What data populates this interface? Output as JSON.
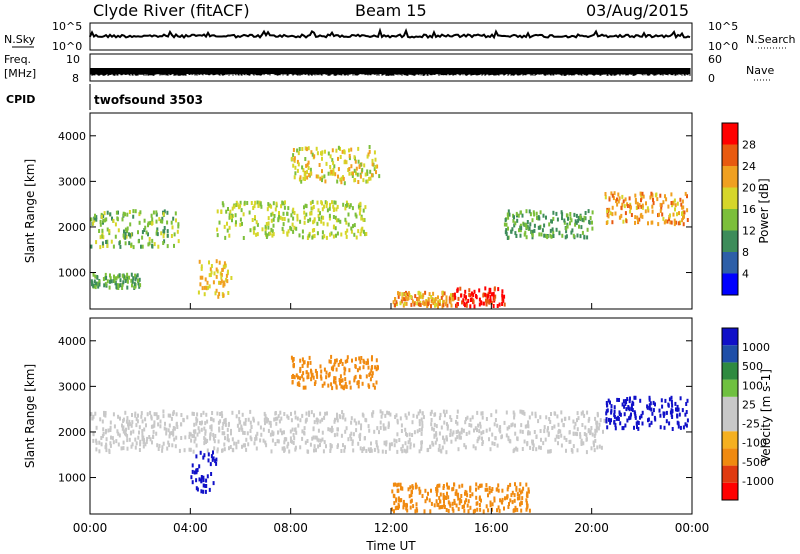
{
  "header": {
    "title": "Clyde River (fitACF)",
    "beam": "Beam 15",
    "date": "03/Aug/2015"
  },
  "top_panels": {
    "nsky_label": "N.Sky",
    "nsky_ticks": [
      "10^5",
      "10^0"
    ],
    "nsearch_label": "N.Search",
    "freq_label_line1": "Freq.",
    "freq_label_line2": "[MHz]",
    "freq_ticks": [
      "10",
      "8"
    ],
    "nave_label": "Nave",
    "nave_ticks": [
      "60",
      "0"
    ],
    "cpid_label": "CPID",
    "cpid_value": "twofsound 3503"
  },
  "colors": {
    "power_scale": [
      "#0000ff",
      "#2d5fa8",
      "#3d8c5a",
      "#7cbf3a",
      "#d6d62a",
      "#f0a020",
      "#e85a10",
      "#ff0000"
    ],
    "velocity_scale": [
      "#ff0000",
      "#e03a10",
      "#f08a10",
      "#f5b020",
      "#c8c8c8",
      "#c8c8c8",
      "#6fc040",
      "#2f8a40",
      "#1f4fa8",
      "#1010c8"
    ],
    "ground_scatter": "#c8c8c8"
  },
  "chart_data": [
    {
      "type": "heatmap",
      "title": "",
      "ylabel": "Slant Range [km]",
      "ylim": [
        200,
        4500
      ],
      "yticks": [
        1000,
        2000,
        3000,
        4000
      ],
      "colorbar_label": "Power [dB]",
      "colorbar_ticks": [
        "4",
        "8",
        "12",
        "16",
        "20",
        "24",
        "28"
      ],
      "note": "Range-time intensity plot of backscatter power",
      "regions": [
        {
          "t_start": 0.0,
          "t_end": 3.5,
          "r_low": 1600,
          "r_high": 2400,
          "power_db": 14
        },
        {
          "t_start": 0.0,
          "t_end": 2.0,
          "r_low": 700,
          "r_high": 1000,
          "power_db": 12
        },
        {
          "t_start": 4.3,
          "t_end": 5.6,
          "r_low": 500,
          "r_high": 1300,
          "power_db": 20
        },
        {
          "t_start": 5.0,
          "t_end": 11.0,
          "r_low": 1800,
          "r_high": 2600,
          "power_db": 16
        },
        {
          "t_start": 8.0,
          "t_end": 11.5,
          "r_low": 3000,
          "r_high": 3800,
          "power_db": 18
        },
        {
          "t_start": 12.0,
          "t_end": 14.5,
          "r_low": 300,
          "r_high": 600,
          "power_db": 22
        },
        {
          "t_start": 14.5,
          "t_end": 16.5,
          "r_low": 300,
          "r_high": 700,
          "power_db": 30
        },
        {
          "t_start": 16.5,
          "t_end": 20.0,
          "r_low": 1800,
          "r_high": 2400,
          "power_db": 12
        },
        {
          "t_start": 20.5,
          "t_end": 23.8,
          "r_low": 2100,
          "r_high": 2800,
          "power_db": 22
        }
      ]
    },
    {
      "type": "heatmap",
      "title": "",
      "xlabel": "Time UT",
      "ylabel": "Slant Range [km]",
      "ylim": [
        200,
        4500
      ],
      "yticks": [
        1000,
        2000,
        3000,
        4000
      ],
      "xticks": [
        "00:00",
        "04:00",
        "08:00",
        "12:00",
        "16:00",
        "20:00",
        "00:00"
      ],
      "colorbar_label": "Velocity [m s-1]",
      "colorbar_ticks": [
        "1000",
        "500",
        "100",
        "25",
        "-25",
        "-100",
        "-500",
        "-1000"
      ],
      "note": "Range-time Doppler velocity plot; grey = ground scatter",
      "regions": [
        {
          "t_start": 0.0,
          "t_end": 20.5,
          "r_low": 1600,
          "r_high": 2500,
          "velocity_ms": 0
        },
        {
          "t_start": 4.0,
          "t_end": 5.0,
          "r_low": 700,
          "r_high": 1600,
          "velocity_ms": 800
        },
        {
          "t_start": 12.0,
          "t_end": 17.5,
          "r_low": 300,
          "r_high": 900,
          "velocity_ms": -200
        },
        {
          "t_start": 20.5,
          "t_end": 23.8,
          "r_low": 2100,
          "r_high": 2800,
          "velocity_ms": 700
        },
        {
          "t_start": 8.0,
          "t_end": 11.5,
          "r_low": 3000,
          "r_high": 3700,
          "velocity_ms": -300
        }
      ]
    }
  ]
}
